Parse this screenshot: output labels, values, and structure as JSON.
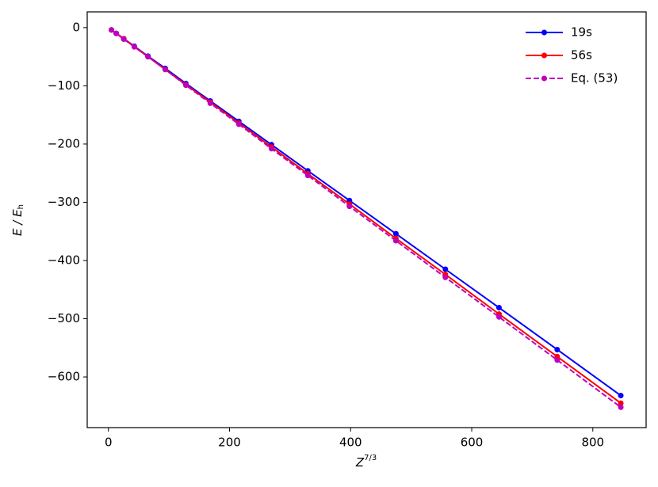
{
  "chart_data": {
    "type": "line",
    "x_label": {
      "base": "Z",
      "sup": "7/3"
    },
    "y_label": {
      "main": "E / E",
      "sub": "h"
    },
    "x": [
      5.0,
      13.0,
      25.4,
      42.8,
      65.4,
      93.9,
      128.0,
      168.3,
      215.4,
      269.3,
      329.4,
      398.1,
      474.8,
      556.5,
      645.1,
      741.2,
      846.2
    ],
    "series": [
      {
        "name": "19s",
        "color": "#0000ff",
        "dash": false,
        "values": [
          -4,
          -10,
          -19,
          -32,
          -49,
          -70,
          -96,
          -126,
          -161,
          -201,
          -246,
          -297,
          -354,
          -415,
          -481,
          -553,
          -632
        ]
      },
      {
        "name": "56s",
        "color": "#ff0000",
        "dash": false,
        "values": [
          -4,
          -10,
          -19,
          -33,
          -50,
          -72,
          -98,
          -128,
          -164,
          -205,
          -251,
          -303,
          -362,
          -424,
          -492,
          -565,
          -645
        ]
      },
      {
        "name": "Eq. (53)",
        "color": "#bf00bf",
        "dash": true,
        "values": [
          -4,
          -10,
          -20,
          -33,
          -50,
          -72,
          -99,
          -130,
          -166,
          -208,
          -254,
          -307,
          -366,
          -429,
          -497,
          -571,
          -652
        ]
      }
    ],
    "xlim": [
      -35,
      888
    ],
    "ylim": [
      -687,
      27
    ],
    "xticks": [
      0,
      200,
      400,
      600,
      800
    ],
    "yticks": [
      0,
      {
        "value": -100,
        "label": "−100"
      },
      {
        "value": -200,
        "label": "−200"
      },
      {
        "value": -300,
        "label": "−300"
      },
      {
        "value": -400,
        "label": "−400"
      },
      {
        "value": -500,
        "label": "−500"
      },
      {
        "value": -600,
        "label": "−600"
      }
    ],
    "legend": "upper right",
    "grid": false
  }
}
